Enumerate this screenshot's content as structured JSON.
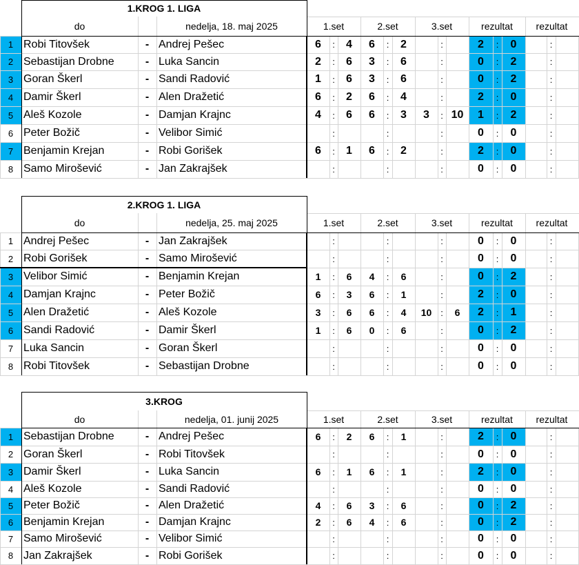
{
  "rounds": [
    {
      "title": "1.KROG 1. LIGA",
      "header": {
        "do": "do",
        "date": "nedelja, 18. maj 2025",
        "set1": "1.set",
        "set2": "2.set",
        "set3": "3.set",
        "rezultat1": "rezultat",
        "rezultat2": "rezultat"
      },
      "matches": [
        {
          "num": "1",
          "highlight": true,
          "home": "Robi  Titovšek",
          "dash": "-",
          "away": "Andrej Pešec",
          "sets": [
            [
              "6",
              "4"
            ],
            [
              "6",
              "2"
            ],
            [
              "",
              ""
            ]
          ],
          "result": [
            "2",
            "0"
          ]
        },
        {
          "num": "2",
          "highlight": true,
          "home": "Sebastijan Drobne",
          "dash": "-",
          "away": "Luka Sancin",
          "sets": [
            [
              "2",
              "6"
            ],
            [
              "3",
              "6"
            ],
            [
              "",
              ""
            ]
          ],
          "result": [
            "0",
            "2"
          ]
        },
        {
          "num": "3",
          "highlight": true,
          "home": "Goran Škerl",
          "dash": "-",
          "away": "Sandi Radović",
          "sets": [
            [
              "1",
              "6"
            ],
            [
              "3",
              "6"
            ],
            [
              "",
              ""
            ]
          ],
          "result": [
            "0",
            "2"
          ]
        },
        {
          "num": "4",
          "highlight": true,
          "home": "Damir Škerl",
          "dash": "-",
          "away": "Alen Dražetić",
          "sets": [
            [
              "6",
              "2"
            ],
            [
              "6",
              "4"
            ],
            [
              "",
              ""
            ]
          ],
          "result": [
            "2",
            "0"
          ]
        },
        {
          "num": "5",
          "highlight": true,
          "home": "Aleš Kozole",
          "dash": "-",
          "away": "Damjan Krajnc",
          "sets": [
            [
              "4",
              "6"
            ],
            [
              "6",
              "3"
            ],
            [
              "3",
              "10"
            ]
          ],
          "result": [
            "1",
            "2"
          ]
        },
        {
          "num": "6",
          "highlight": false,
          "home": "Peter Božič",
          "dash": "-",
          "away": "Velibor Simić",
          "sets": [
            [
              "",
              ""
            ],
            [
              "",
              ""
            ],
            [
              "",
              ""
            ]
          ],
          "result": [
            "0",
            "0"
          ]
        },
        {
          "num": "7",
          "highlight": true,
          "home": "Benjamin Krejan",
          "dash": "-",
          "away": "Robi Gorišek",
          "sets": [
            [
              "6",
              "1"
            ],
            [
              "6",
              "2"
            ],
            [
              "",
              ""
            ]
          ],
          "result": [
            "2",
            "0"
          ]
        },
        {
          "num": "8",
          "highlight": false,
          "home": "Samo Mirošević",
          "dash": "-",
          "away": "Jan Zakrajšek",
          "sets": [
            [
              "",
              ""
            ],
            [
              "",
              ""
            ],
            [
              "",
              ""
            ]
          ],
          "result": [
            "0",
            "0"
          ]
        }
      ]
    },
    {
      "title": "2.KROG 1. LIGA",
      "header": {
        "do": "do",
        "date": "nedelja, 25. maj 2025",
        "set1": "1.set",
        "set2": "2.set",
        "set3": "3.set",
        "rezultat1": "rezultat",
        "rezultat2": "rezultat"
      },
      "matches": [
        {
          "num": "1",
          "highlight": false,
          "home": "Andrej Pešec",
          "dash": "-",
          "away": "Jan Zakrajšek",
          "sets": [
            [
              "",
              ""
            ],
            [
              "",
              ""
            ],
            [
              "",
              ""
            ]
          ],
          "result": [
            "0",
            "0"
          ]
        },
        {
          "num": "2",
          "highlight": false,
          "home": "Robi Gorišek",
          "dash": "-",
          "away": "Samo Mirošević",
          "sets": [
            [
              "",
              ""
            ],
            [
              "",
              ""
            ],
            [
              "",
              ""
            ]
          ],
          "result": [
            "0",
            "0"
          ]
        },
        {
          "num": "3",
          "highlight": true,
          "home": "Velibor Simić",
          "dash": "-",
          "away": "Benjamin Krejan",
          "sets": [
            [
              "1",
              "6"
            ],
            [
              "4",
              "6"
            ],
            [
              "",
              ""
            ]
          ],
          "result": [
            "0",
            "2"
          ]
        },
        {
          "num": "4",
          "highlight": true,
          "home": "Damjan Krajnc",
          "dash": "-",
          "away": "Peter Božič",
          "sets": [
            [
              "6",
              "3"
            ],
            [
              "6",
              "1"
            ],
            [
              "",
              ""
            ]
          ],
          "result": [
            "2",
            "0"
          ]
        },
        {
          "num": "5",
          "highlight": true,
          "home": "Alen Dražetić",
          "dash": "-",
          "away": "Aleš Kozole",
          "sets": [
            [
              "3",
              "6"
            ],
            [
              "6",
              "4"
            ],
            [
              "10",
              "6"
            ]
          ],
          "result": [
            "2",
            "1"
          ]
        },
        {
          "num": "6",
          "highlight": true,
          "home": "Sandi Radović",
          "dash": "-",
          "away": "Damir Škerl",
          "sets": [
            [
              "1",
              "6"
            ],
            [
              "0",
              "6"
            ],
            [
              "",
              ""
            ]
          ],
          "result": [
            "0",
            "2"
          ]
        },
        {
          "num": "7",
          "highlight": false,
          "home": "Luka Sancin",
          "dash": "-",
          "away": "Goran Škerl",
          "sets": [
            [
              "",
              ""
            ],
            [
              "",
              ""
            ],
            [
              "",
              ""
            ]
          ],
          "result": [
            "0",
            "0"
          ]
        },
        {
          "num": "8",
          "highlight": false,
          "home": "Robi  Titovšek",
          "dash": "-",
          "away": "Sebastijan Drobne",
          "sets": [
            [
              "",
              ""
            ],
            [
              "",
              ""
            ],
            [
              "",
              ""
            ]
          ],
          "result": [
            "0",
            "0"
          ]
        }
      ]
    },
    {
      "title": "3.KROG",
      "header": {
        "do": "do",
        "date": "nedelja, 01. junij 2025",
        "set1": "1.set",
        "set2": "2.set",
        "set3": "3.set",
        "rezultat1": "rezultat",
        "rezultat2": "rezultat"
      },
      "matches": [
        {
          "num": "1",
          "highlight": true,
          "home": "Sebastijan Drobne",
          "dash": "-",
          "away": "Andrej Pešec",
          "sets": [
            [
              "6",
              "2"
            ],
            [
              "6",
              "1"
            ],
            [
              "",
              ""
            ]
          ],
          "result": [
            "2",
            "0"
          ]
        },
        {
          "num": "2",
          "highlight": false,
          "home": "Goran Škerl",
          "dash": "-",
          "away": "Robi  Titovšek",
          "sets": [
            [
              "",
              ""
            ],
            [
              "",
              ""
            ],
            [
              "",
              ""
            ]
          ],
          "result": [
            "0",
            "0"
          ]
        },
        {
          "num": "3",
          "highlight": true,
          "home": "Damir Škerl",
          "dash": "-",
          "away": "Luka Sancin",
          "sets": [
            [
              "6",
              "1"
            ],
            [
              "6",
              "1"
            ],
            [
              "",
              ""
            ]
          ],
          "result": [
            "2",
            "0"
          ]
        },
        {
          "num": "4",
          "highlight": false,
          "home": "Aleš Kozole",
          "dash": "-",
          "away": "Sandi Radović",
          "sets": [
            [
              "",
              ""
            ],
            [
              "",
              ""
            ],
            [
              "",
              ""
            ]
          ],
          "result": [
            "0",
            "0"
          ]
        },
        {
          "num": "5",
          "highlight": true,
          "home": "Peter Božič",
          "dash": "-",
          "away": "Alen Dražetić",
          "sets": [
            [
              "4",
              "6"
            ],
            [
              "3",
              "6"
            ],
            [
              "",
              ""
            ]
          ],
          "result": [
            "0",
            "2"
          ]
        },
        {
          "num": "6",
          "highlight": true,
          "home": "Benjamin Krejan",
          "dash": "-",
          "away": "Damjan Krajnc",
          "sets": [
            [
              "2",
              "6"
            ],
            [
              "4",
              "6"
            ],
            [
              "",
              ""
            ]
          ],
          "result": [
            "0",
            "2"
          ]
        },
        {
          "num": "7",
          "highlight": false,
          "home": "Samo Mirošević",
          "dash": "-",
          "away": "Velibor Simić",
          "sets": [
            [
              "",
              ""
            ],
            [
              "",
              ""
            ],
            [
              "",
              ""
            ]
          ],
          "result": [
            "0",
            "0"
          ]
        },
        {
          "num": "8",
          "highlight": false,
          "home": "Jan Zakrajšek",
          "dash": "-",
          "away": "Robi Gorišek",
          "sets": [
            [
              "",
              ""
            ],
            [
              "",
              ""
            ],
            [
              "",
              ""
            ]
          ],
          "result": [
            "0",
            "0"
          ]
        }
      ]
    }
  ],
  "colon": ":",
  "colors": {
    "highlight": "#00b0f0",
    "grid": "#d4d4d4",
    "border": "#000000"
  }
}
